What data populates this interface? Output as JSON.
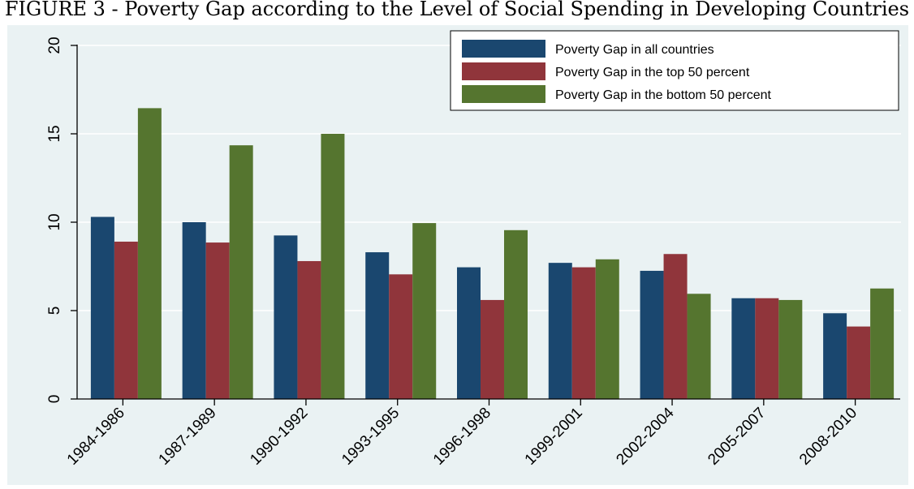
{
  "figure": {
    "title": "FIGURE 3 - Poverty Gap according to the Level of Social Spending in Developing Countries"
  },
  "chart_data": {
    "type": "bar",
    "title": "FIGURE 3 - Poverty Gap according to the Level of Social Spending in Developing Countries",
    "xlabel": "",
    "ylabel": "",
    "categories": [
      "1984-1986",
      "1987-1989",
      "1990-1992",
      "1993-1995",
      "1996-1998",
      "1999-2001",
      "2002-2004",
      "2005-2007",
      "2008-2010"
    ],
    "series": [
      {
        "name": "Poverty Gap in all countries",
        "color": "#1a476f",
        "values": [
          10.3,
          10.0,
          9.25,
          8.3,
          7.45,
          7.7,
          7.25,
          5.7,
          4.85
        ]
      },
      {
        "name": "Poverty Gap in the top 50 percent",
        "color": "#90353b",
        "values": [
          8.9,
          8.85,
          7.8,
          7.05,
          5.6,
          7.45,
          8.2,
          5.7,
          4.1
        ]
      },
      {
        "name": "Poverty Gap in the bottom 50 percent",
        "color": "#55752f",
        "values": [
          16.45,
          14.35,
          15.0,
          9.95,
          9.55,
          7.9,
          5.95,
          5.6,
          6.25
        ]
      }
    ],
    "ylim": [
      0,
      20
    ],
    "yticks": [
      0,
      5,
      10,
      15,
      20
    ],
    "grid": true,
    "legend_position": "top-right"
  }
}
